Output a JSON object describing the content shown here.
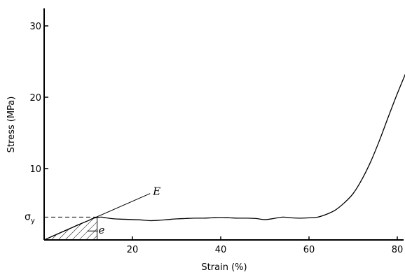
{
  "chart_data": {
    "type": "line",
    "title": "",
    "xlabel": "Strain (%)",
    "ylabel": "Stress (MPa)",
    "xlim": [
      0,
      83
    ],
    "ylim": [
      0,
      31
    ],
    "x_ticks": [
      20,
      40,
      60,
      80
    ],
    "y_ticks": [
      10,
      20,
      30
    ],
    "grid": false,
    "series": [
      {
        "x": [
          0,
          2,
          4,
          6,
          8,
          10,
          11,
          12,
          13,
          14,
          16,
          18,
          20,
          22,
          24,
          26,
          28,
          30,
          32,
          34,
          36,
          38,
          40,
          42,
          44,
          46,
          48,
          50,
          52,
          54,
          56,
          58,
          60,
          62,
          64,
          66,
          68,
          70,
          72,
          74,
          76,
          78,
          80,
          82
        ],
        "y": [
          0,
          0.55,
          1.1,
          1.65,
          2.2,
          2.7,
          3.0,
          3.15,
          3.2,
          3.1,
          2.95,
          2.9,
          2.85,
          2.8,
          2.7,
          2.75,
          2.85,
          2.95,
          3.0,
          3.05,
          3.05,
          3.1,
          3.15,
          3.1,
          3.05,
          3.05,
          3.0,
          2.85,
          3.0,
          3.2,
          3.1,
          3.05,
          3.1,
          3.2,
          3.6,
          4.2,
          5.2,
          6.5,
          8.5,
          11.0,
          14.0,
          17.3,
          20.5,
          23.5
        ]
      }
    ],
    "modulus_line": {
      "x": [
        0,
        24
      ],
      "y": [
        0,
        6.5
      ]
    },
    "yield_stress": 3.2,
    "yield_strain": 12,
    "annotations": {
      "sigma_y": "σ",
      "sigma_y_sub": "y",
      "E": "E",
      "e": "e"
    }
  }
}
